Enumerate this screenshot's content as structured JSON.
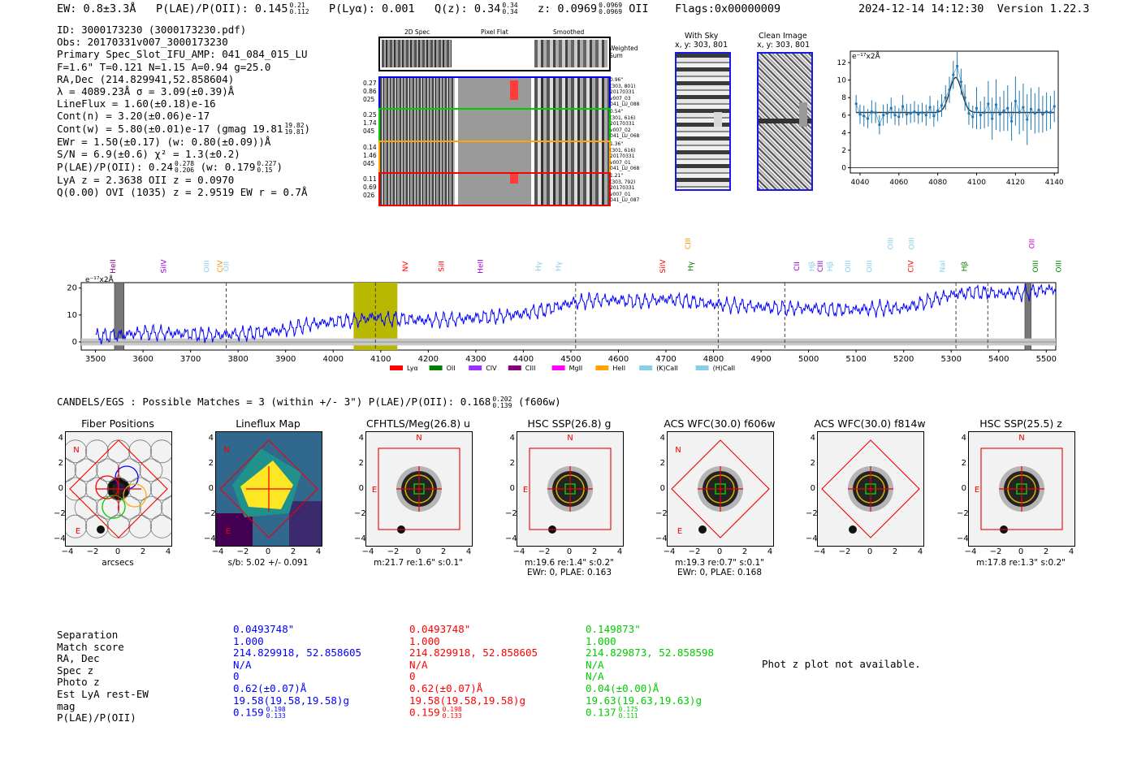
{
  "header": {
    "ew": "EW: 0.8±3.3Å",
    "plae_label": "P(LAE)/P(OII): 0.145",
    "plae_hi": "0.21",
    "plae_lo": "0.112",
    "plya": "P(Lyα): 0.001",
    "qz_label": "Q(z): 0.34",
    "qz_hi": "0.34",
    "qz_lo": "0.34",
    "z_label": "z: 0.0969",
    "z_hi": "0.0969",
    "z_lo": "0.0969",
    "z_line": "OII",
    "flags": "Flags:0x00000009",
    "timestamp": "2024-12-14 14:12:30",
    "version": "Version 1.22.3"
  },
  "info": {
    "id": "ID: 3000173230 (3000173230.pdf)",
    "obs": "Obs: 20170331v007_3000173230",
    "primary": "Primary Spec_Slot_IFU_AMP: 041_084_015_LU",
    "fiber": "F=1.6\"  T=0.121  N=1.15  A=0.94  g=25.0",
    "radec": "RA,Dec (214.829941,52.858604)",
    "lambda": "λ = 4089.23Å  σ = 3.09(±0.39)Å",
    "lineflux": "LineFlux = 1.60(±0.18)e-16",
    "contn": "Cont(n) = 3.20(±0.06)e-17",
    "contw_label": "Cont(w) = 5.80(±0.01)e-17 (gmag 19.81",
    "contw_hi": "19.82",
    "contw_lo": "19.81",
    "ewr": "EWr = 1.50(±0.17) (w: 0.80(±0.09))Å",
    "sn": "S/N = 6.9(±0.6)  χ² = 1.3(±0.2)",
    "plae_label": "P(LAE)/P(OII): 0.24",
    "plae_hi": "0.278",
    "plae_lo": "0.206",
    "plae_w": "(w: 0.179",
    "plae_w_hi": "0.227",
    "plae_w_lo": "0.15",
    "lya": "LyA z = 2.3638  OII z = 0.0970",
    "q": "Q(0.00) OVI (1035) z = 2.9519  EW r = 0.7Å"
  },
  "cutouts": {
    "col_2d": "2D Spec",
    "col_flat": "Pixel Flat",
    "col_smooth": "Smoothed",
    "weighted": "Weighted\nSum",
    "rows": [
      {
        "left": [
          "0.27",
          "0.86",
          "025"
        ],
        "right": [
          "0.96\"",
          "(303, 801)",
          "20170331",
          "v007_03",
          "041_LU_088"
        ],
        "color": "#0000ff"
      },
      {
        "left": [
          "0.25",
          "1.74",
          "045"
        ],
        "right": [
          "0.54\"",
          "(301, 616)",
          "20170331",
          "v007_02",
          "041_LU_068"
        ],
        "color": "#00cc00"
      },
      {
        "left": [
          "0.14",
          "1.46",
          "045"
        ],
        "right": [
          "1.36\"",
          "(301, 616)",
          "20170331",
          "v007_01",
          "041_LU_068"
        ],
        "color": "#ffa500"
      },
      {
        "left": [
          "0.11",
          "0.69",
          "026"
        ],
        "right": [
          "1.21\"",
          "(303, 792)",
          "20170331",
          "v007_01",
          "041_LU_087"
        ],
        "color": "#ff0000"
      }
    ]
  },
  "sky": {
    "with_title": "With Sky",
    "with_coords": "x, y: 303, 801",
    "clean_title": "Clean Image",
    "clean_coords": "x, y: 303, 801"
  },
  "zoom_chart": {
    "ylabel": "e⁻¹⁷x2Å",
    "yticks": [
      "0",
      "2",
      "4",
      "6",
      "8",
      "10",
      "12"
    ],
    "xticks": [
      "4040",
      "4060",
      "4080",
      "4100",
      "4120",
      "4140"
    ]
  },
  "spectrum": {
    "ylabel": "e⁻¹⁷x2Å",
    "yticks": [
      "0",
      "10",
      "20"
    ],
    "xticks": [
      "3500",
      "3600",
      "3700",
      "3800",
      "3900",
      "4000",
      "4100",
      "4200",
      "4300",
      "4400",
      "4500",
      "4600",
      "4700",
      "4800",
      "4900",
      "5000",
      "5100",
      "5200",
      "5300",
      "5400",
      "5500"
    ],
    "lines": [
      {
        "label": "HeII",
        "x": 3537,
        "color": "#8b008b",
        "row": "mid"
      },
      {
        "label": "SiIV",
        "x": 3643,
        "color": "#9400d3",
        "row": "mid"
      },
      {
        "label": "OIII",
        "x": 3734,
        "color": "#87ceeb",
        "row": "mid"
      },
      {
        "label": "CIV",
        "x": 3762,
        "color": "#ff8c00",
        "row": "mid"
      },
      {
        "label": "OII",
        "x": 3775,
        "color": "#87ceeb",
        "row": "mid"
      },
      {
        "label": "NV",
        "x": 4152,
        "color": "#ff0000",
        "row": "mid"
      },
      {
        "label": "SiII",
        "x": 4228,
        "color": "#ff0000",
        "row": "mid"
      },
      {
        "label": "HeII",
        "x": 4310,
        "color": "#9400d3",
        "row": "mid"
      },
      {
        "label": "Hγ",
        "x": 4432,
        "color": "#87ceeb",
        "row": "mid"
      },
      {
        "label": "Hγ",
        "x": 4474,
        "color": "#87ceeb",
        "row": "mid"
      },
      {
        "label": "SiIV",
        "x": 4693,
        "color": "#ff0000",
        "row": "mid"
      },
      {
        "label": "CIII",
        "x": 4746,
        "color": "#ff8c00",
        "row": "top"
      },
      {
        "label": "Hγ",
        "x": 4752,
        "color": "#008000",
        "row": "mid"
      },
      {
        "label": "CII",
        "x": 4975,
        "color": "#9400d3",
        "row": "mid"
      },
      {
        "label": "Hβ",
        "x": 5007,
        "color": "#87ceeb",
        "row": "mid"
      },
      {
        "label": "CIII",
        "x": 5025,
        "color": "#9400d3",
        "row": "mid"
      },
      {
        "label": "Hβ",
        "x": 5045,
        "color": "#87ceeb",
        "row": "mid"
      },
      {
        "label": "OIII",
        "x": 5083,
        "color": "#87ceeb",
        "row": "mid"
      },
      {
        "label": "OIII",
        "x": 5128,
        "color": "#87ceeb",
        "row": "mid"
      },
      {
        "label": "OIII",
        "x": 5172,
        "color": "#87ceeb",
        "row": "top"
      },
      {
        "label": "CIV",
        "x": 5215,
        "color": "#ff0000",
        "row": "mid"
      },
      {
        "label": "OIII",
        "x": 5217,
        "color": "#87ceeb",
        "row": "top"
      },
      {
        "label": "NaI",
        "x": 5282,
        "color": "#87ceeb",
        "row": "mid"
      },
      {
        "label": "Hβ",
        "x": 5328,
        "color": "#008000",
        "row": "mid"
      },
      {
        "label": "OII",
        "x": 5470,
        "color": "#cc00cc",
        "row": "top"
      },
      {
        "label": "OIII",
        "x": 5477,
        "color": "#008000",
        "row": "mid"
      },
      {
        "label": "OIII",
        "x": 5526,
        "color": "#008000",
        "row": "mid"
      }
    ],
    "legend": [
      {
        "label": "Lyα",
        "color": "#ff0000"
      },
      {
        "label": "OII",
        "color": "#008000"
      },
      {
        "label": "CIV",
        "color": "#9b30ff"
      },
      {
        "label": "CIII",
        "color": "#800080"
      },
      {
        "label": "MgII",
        "color": "#ff00ff"
      },
      {
        "label": "HeII",
        "color": "#ffa500"
      },
      {
        "label": "(K)CaII",
        "color": "#87ceeb"
      },
      {
        "label": "(H)CaII",
        "color": "#87ceeb"
      }
    ]
  },
  "candels": {
    "label": "CANDELS/EGS : Possible Matches = 3 (within +/- 3\")  P(LAE)/P(OII): 0.168",
    "hi": "0.202",
    "lo": "0.139",
    "filter": "(f606w)"
  },
  "panels": [
    {
      "title": "Fiber Positions",
      "caption": "arcsecs",
      "caption2": ""
    },
    {
      "title": "Lineflux Map",
      "caption": "s/b: 5.02 +/- 0.091",
      "caption2": ""
    },
    {
      "title": "CFHTLS/Meg(26.8) u",
      "caption": "m:21.7  re:1.6\"  s:0.1\"",
      "caption2": ""
    },
    {
      "title": "HSC SSP(26.8) g",
      "caption": "m:19.6  re:1.4\"  s:0.2\"",
      "caption2": "EWr: 0, PLAE: 0.163"
    },
    {
      "title": "ACS WFC(30.0) f606w",
      "caption": "m:19.3  re:0.7\"  s:0.1\"",
      "caption2": "EWr: 0, PLAE: 0.168"
    },
    {
      "title": "ACS WFC(30.0) f814w",
      "caption": "",
      "caption2": ""
    },
    {
      "title": "HSC SSP(25.5) z",
      "caption": "m:17.8  re:1.3\"  s:0.2\"",
      "caption2": ""
    }
  ],
  "panel_ticks": {
    "y": [
      "4",
      "2",
      "0",
      "−2",
      "−4"
    ],
    "x": [
      "−4",
      "−2",
      "0",
      "2",
      "4"
    ],
    "n": "N",
    "e": "E"
  },
  "matches": {
    "labels": [
      "Separation",
      "Match score",
      "RA, Dec",
      "Spec z",
      "Photo z",
      "Est LyA rest-EW",
      "mag",
      "P(LAE)/P(OII)"
    ],
    "columns": [
      {
        "color": "#0000ff",
        "values": [
          "0.0493748\"",
          "1.000",
          "214.829918, 52.858605",
          "N/A",
          "0",
          "0.62(±0.07)Å",
          "19.58(19.58,19.58)g",
          "0.159"
        ],
        "hi": "0.198",
        "lo": "0.133"
      },
      {
        "color": "#ff0000",
        "values": [
          "0.0493748\"",
          "1.000",
          "214.829918, 52.858605",
          "N/A",
          "0",
          "0.62(±0.07)Å",
          "19.58(19.58,19.58)g",
          "0.159"
        ],
        "hi": "0.198",
        "lo": "0.133"
      },
      {
        "color": "#00cc00",
        "values": [
          "0.149873\"",
          "1.000",
          "214.829873, 52.858598",
          "N/A",
          "N/A",
          "0.04(±0.00)Å",
          "19.63(19.63,19.63)g",
          "0.137"
        ],
        "hi": "0.175",
        "lo": "0.111"
      }
    ],
    "photz_msg": "Phot z plot not available."
  },
  "chart_data": [
    {
      "type": "line",
      "title": "",
      "xlabel": "",
      "ylabel": "e⁻¹⁷x2Å",
      "xlim": [
        4035,
        4142
      ],
      "ylim": [
        -0.6,
        13.3
      ],
      "x": [
        4038,
        4040,
        4042,
        4044,
        4046,
        4048,
        4050,
        4052,
        4054,
        4056,
        4058,
        4060,
        4062,
        4064,
        4066,
        4068,
        4070,
        4072,
        4074,
        4076,
        4078,
        4080,
        4082,
        4084,
        4086,
        4088,
        4090,
        4092,
        4094,
        4096,
        4098,
        4100,
        4102,
        4104,
        4106,
        4108,
        4110,
        4112,
        4114,
        4116,
        4118,
        4120,
        4122,
        4124,
        4126,
        4128,
        4130,
        4132,
        4134,
        4136,
        4138,
        4140
      ],
      "values": [
        7.3,
        6.1,
        5.9,
        5.6,
        6.4,
        6.3,
        4.9,
        6.0,
        6.2,
        6.8,
        6.0,
        5.8,
        7.0,
        6.1,
        6.2,
        6.4,
        6.1,
        6.3,
        6.0,
        6.9,
        5.9,
        6.5,
        7.1,
        8.0,
        8.9,
        10.6,
        11.6,
        9.8,
        8.0,
        6.2,
        5.8,
        6.8,
        6.0,
        6.3,
        7.3,
        5.6,
        7.2,
        6.1,
        6.5,
        6.8,
        5.3,
        7.6,
        6.3,
        6.9,
        5.5,
        6.7,
        6.2,
        6.6,
        6.1,
        6.4,
        6.3,
        7.0
      ],
      "errors": [
        1.0,
        1.1,
        1.2,
        1.1,
        1.3,
        1.2,
        1.1,
        1.2,
        1.1,
        1.2,
        1.1,
        1.0,
        1.3,
        1.2,
        1.1,
        1.2,
        1.1,
        1.1,
        1.2,
        1.3,
        1.2,
        1.2,
        1.3,
        1.4,
        1.5,
        1.6,
        1.6,
        1.5,
        1.5,
        1.3,
        1.3,
        2.4,
        1.6,
        1.8,
        2.6,
        2.4,
        2.9,
        2.0,
        2.3,
        2.6,
        2.2,
        2.8,
        2.5,
        2.7,
        2.9,
        2.4,
        2.3,
        2.6,
        2.1,
        2.2,
        1.9,
        1.8
      ],
      "fit": {
        "continuum": 6.3,
        "amplitude": 4.0,
        "center": 4089.2,
        "sigma": 3.1
      },
      "hline": 0
    },
    {
      "type": "line",
      "title": "",
      "xlabel": "",
      "ylabel": "e⁻¹⁷x2Å",
      "xlim": [
        3470,
        5520
      ],
      "ylim": [
        -3,
        22
      ],
      "x": [
        3500,
        3550,
        3600,
        3650,
        3700,
        3750,
        3800,
        3850,
        3900,
        3950,
        4000,
        4050,
        4089,
        4100,
        4150,
        4200,
        4250,
        4300,
        4350,
        4400,
        4450,
        4500,
        4550,
        4600,
        4650,
        4700,
        4750,
        4800,
        4850,
        4900,
        4950,
        5000,
        5050,
        5100,
        5150,
        5200,
        5250,
        5300,
        5350,
        5400,
        5450,
        5500,
        5520
      ],
      "values": [
        2.0,
        2.5,
        3.5,
        3.3,
        3.0,
        2.5,
        3.0,
        3.5,
        4.5,
        6.5,
        7.5,
        8.0,
        9.5,
        8.5,
        8.5,
        8.0,
        8.3,
        9.0,
        9.5,
        10.5,
        12.0,
        14.5,
        15.5,
        15.5,
        15.0,
        16.0,
        15.0,
        14.0,
        13.5,
        13.0,
        12.5,
        12.5,
        12.0,
        12.0,
        12.5,
        12.5,
        15.0,
        17.5,
        18.5,
        18.0,
        18.0,
        19.5,
        19.5
      ],
      "vlines": [
        3775,
        4089,
        4510,
        4810,
        4950,
        5310,
        5377
      ],
      "highlight": [
        4043,
        4135
      ],
      "shade_bands": [
        [
          3540,
          3560
        ],
        [
          5455,
          5468
        ]
      ]
    }
  ],
  "colors": {
    "blue": "#0000ff",
    "red": "#ff0000",
    "green": "#00cc00",
    "orange": "#ffa500",
    "spectrum": "#0000ff",
    "highlight": "#b8b800",
    "marker": "#1f77b4"
  }
}
